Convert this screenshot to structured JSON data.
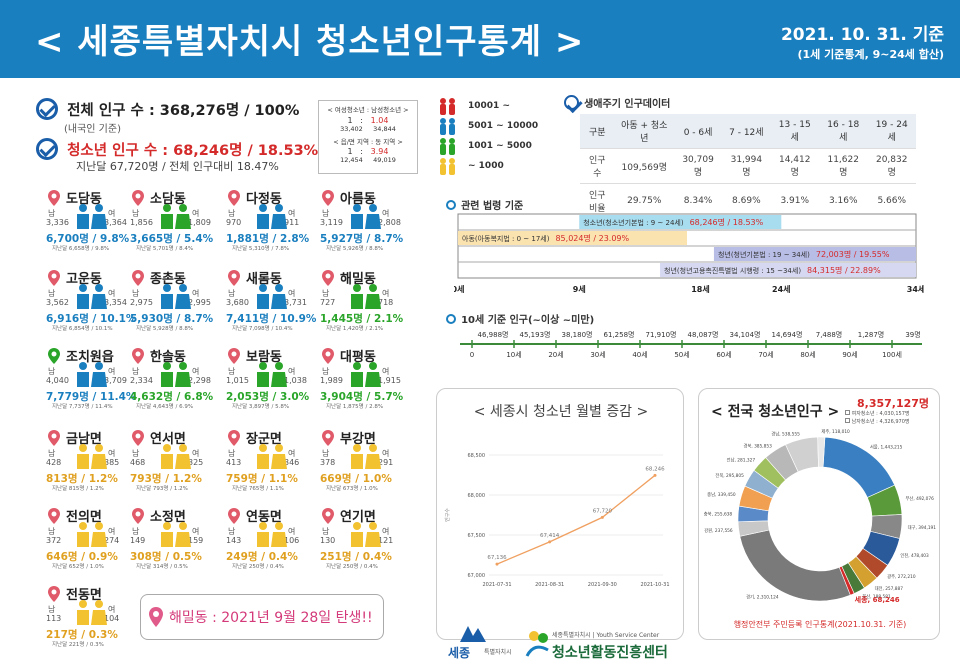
{
  "header": {
    "title": "< 세종특별자치시 청소년인구통계 >",
    "date": "2021. 10. 31. 기준",
    "sub": "(1세 기준통계, 9~24세 합산)"
  },
  "summary": {
    "total": "전체 인구 수 : 368,276명 / 100%",
    "total_note": "(내국인 기준)",
    "youth": "청소년 인구 수 : 68,246명 / 18.53%",
    "youth_note": "지난달 67,720명 / 전체 인구대비 18.47%"
  },
  "ratio_box": {
    "line1": "< 여성청소년 : 남성청소년 >",
    "r1a": "1",
    "r1sep": ":",
    "r1b": "1.04",
    "n1a": "33,402",
    "n1b": "34,844",
    "line2": "< 읍/면 지역 : 동 지역 >",
    "r2a": "1",
    "r2sep": ":",
    "r2b": "3.94",
    "n2a": "12,454",
    "n2b": "49,019"
  },
  "legend": [
    {
      "label": "10001 ~",
      "color": "#d42a2a"
    },
    {
      "label": "5001 ~ 10000",
      "color": "#1a7fbf"
    },
    {
      "label": "1001 ~ 5000",
      "color": "#2aa52a"
    },
    {
      "label": "~ 1000",
      "color": "#f2c230"
    }
  ],
  "common": {
    "m": "남",
    "f": "여"
  },
  "dongs": [
    {
      "name": "도담동",
      "m": "3,336",
      "f": "3,364",
      "stat": "6,700명 / 9.8%",
      "prev": "지난달 6,658명 / 9.8%",
      "color": "#1a7fbf",
      "statColor": "#1a7fbf"
    },
    {
      "name": "소담동",
      "m": "1,856",
      "f": "1,809",
      "stat": "3,665명 / 5.4%",
      "prev": "지난달 5,701명 / 8.4%",
      "color": "#2aa52a",
      "statColor": "#1a7fbf"
    },
    {
      "name": "다정동",
      "m": "970",
      "f": "911",
      "stat": "1,881명 / 2.8%",
      "prev": "지난달 5,310명 / 7.8%",
      "color": "#1a7fbf",
      "statColor": "#1a7fbf"
    },
    {
      "name": "아름동",
      "m": "3,119",
      "f": "2,808",
      "stat": "5,927명 / 8.7%",
      "prev": "지난달 5,926명 / 8.8%",
      "color": "#1a7fbf",
      "statColor": "#1a7fbf"
    },
    {
      "name": "고운동",
      "m": "3,562",
      "f": "3,354",
      "stat": "6,916명 / 10.1%",
      "prev": "지난달 6,854명 / 10.1%",
      "color": "#1a7fbf",
      "statColor": "#1a7fbf"
    },
    {
      "name": "종촌동",
      "m": "2,975",
      "f": "2,995",
      "stat": "5,930명 / 8.7%",
      "prev": "지난달 5,928명 / 8.8%",
      "color": "#1a7fbf",
      "statColor": "#1a7fbf"
    },
    {
      "name": "새롬동",
      "m": "3,680",
      "f": "3,731",
      "stat": "7,411명 / 10.9%",
      "prev": "지난달 7,098명 / 10.4%",
      "color": "#1a7fbf",
      "statColor": "#1a7fbf"
    },
    {
      "name": "해밀동",
      "m": "727",
      "f": "718",
      "stat": "1,445명 / 2.1%",
      "prev": "지난달 1,420명 / 2.1%",
      "color": "#2aa52a",
      "statColor": "#2aa52a"
    },
    {
      "name": "조치원읍",
      "m": "4,040",
      "f": "3,709",
      "stat": "7,779명 / 11.4%",
      "prev": "지난달 7,737명 / 11.4%",
      "color": "#1a7fbf",
      "statColor": "#1a7fbf"
    },
    {
      "name": "한솔동",
      "m": "2,334",
      "f": "2,298",
      "stat": "4,632명 / 6.8%",
      "prev": "지난달 4,643명 / 6.9%",
      "color": "#2aa52a",
      "statColor": "#2aa52a"
    },
    {
      "name": "보람동",
      "m": "1,015",
      "f": "1,038",
      "stat": "2,053명 / 3.0%",
      "prev": "지난달 3,897명 / 5.8%",
      "color": "#2aa52a",
      "statColor": "#2aa52a"
    },
    {
      "name": "대평동",
      "m": "1,989",
      "f": "1,915",
      "stat": "3,904명 / 5.7%",
      "prev": "지난달 1,875명 / 2.8%",
      "color": "#2aa52a",
      "statColor": "#2aa52a"
    },
    {
      "name": "금남면",
      "m": "428",
      "f": "385",
      "stat": "813명 / 1.2%",
      "prev": "지난달 815명 / 1.2%",
      "color": "#f2c230",
      "statColor": "#e0a020"
    },
    {
      "name": "연서면",
      "m": "468",
      "f": "325",
      "stat": "793명 / 1.2%",
      "prev": "지난달 793명 / 1.2%",
      "color": "#f2c230",
      "statColor": "#e0a020"
    },
    {
      "name": "장군면",
      "m": "413",
      "f": "346",
      "stat": "759명 / 1.1%",
      "prev": "지난달 765명 / 1.1%",
      "color": "#f2c230",
      "statColor": "#e0a020"
    },
    {
      "name": "부강면",
      "m": "378",
      "f": "291",
      "stat": "669명 / 1.0%",
      "prev": "지난달 673명 / 1.0%",
      "color": "#f2c230",
      "statColor": "#e0a020"
    },
    {
      "name": "전의면",
      "m": "372",
      "f": "274",
      "stat": "646명 / 0.9%",
      "prev": "지난달 652명 / 1.0%",
      "color": "#f2c230",
      "statColor": "#e0a020"
    },
    {
      "name": "소정면",
      "m": "149",
      "f": "159",
      "stat": "308명 / 0.5%",
      "prev": "지난달 314명 / 0.5%",
      "color": "#f2c230",
      "statColor": "#e0a020"
    },
    {
      "name": "연동면",
      "m": "143",
      "f": "106",
      "stat": "249명 / 0.4%",
      "prev": "지난달 250명 / 0.4%",
      "color": "#f2c230",
      "statColor": "#e0a020"
    },
    {
      "name": "연기면",
      "m": "130",
      "f": "121",
      "stat": "251명 / 0.4%",
      "prev": "지난달 250명 / 0.4%",
      "color": "#f2c230",
      "statColor": "#e0a020"
    },
    {
      "name": "전동면",
      "m": "113",
      "f": "104",
      "stat": "217명 / 0.3%",
      "prev": "지난달 221명 / 0.3%",
      "color": "#f2c230",
      "statColor": "#e0a020"
    }
  ],
  "haemil_note": "해밀동 : 2021년 9월 28일 탄생!!",
  "lifecycle": {
    "title": "생애주기 인구데이터",
    "headers": [
      "구분",
      "아동 + 청소년",
      "0 - 6세",
      "7 - 12세",
      "13 - 15세",
      "16 - 18세",
      "19 - 24세"
    ],
    "rows": [
      [
        "인구수",
        "109,569명",
        "30,709명",
        "31,994명",
        "14,412명",
        "11,622명",
        "20,832명"
      ],
      [
        "인구비율",
        "29.75%",
        "8.34%",
        "8.69%",
        "3.91%",
        "3.16%",
        "5.66%"
      ]
    ]
  },
  "laws": {
    "title": "관련 법령 기준",
    "bars": [
      {
        "label": "청소년(청소년기본법 : 9 ~ 24세)",
        "value": "68,246명 / 18.53%",
        "start": 9,
        "end": 24,
        "color": "#a8dcef"
      },
      {
        "label": "아동(아동복지법 : 0 ~ 17세)",
        "value": "85,024명 / 23.09%",
        "start": 0,
        "end": 17,
        "color": "#fbe3b0"
      },
      {
        "label": "청년(청년기본법 : 19 ~ 34세)",
        "value": "72,003명 / 19.55%",
        "start": 19,
        "end": 34,
        "color": "#b8bde6"
      },
      {
        "label": "청년(청년고용촉진특별법 시행령 : 15 ~34세)",
        "value": "84,315명 / 22.89%",
        "start": 15,
        "end": 34,
        "color": "#d6d8f2"
      }
    ],
    "ticks": [
      "0세",
      "9세",
      "18세",
      "24세",
      "34세"
    ],
    "tickVals": [
      0,
      9,
      18,
      24,
      34
    ]
  },
  "ages": {
    "title": "10세 기준 인구(~이상 ~미만)",
    "values": [
      "46,988명",
      "45,193명",
      "38,180명",
      "61,258명",
      "71,910명",
      "48,087명",
      "34,104명",
      "14,694명",
      "7,488명",
      "1,287명",
      "39명"
    ],
    "labels": [
      "0",
      "10세",
      "20세",
      "30세",
      "40세",
      "50세",
      "60세",
      "70세",
      "80세",
      "90세",
      "100세"
    ]
  },
  "monthly": {
    "title": "< 세종시 청소년 월별 증감 >",
    "ylabel": "인구수"
  },
  "national": {
    "title": "< 전국 청소년인구 >",
    "total": "8,357,127명",
    "female": "여자청소년 : 4,030,157명",
    "male": "남자청소년 : 4,326,970명",
    "sejong_label": "세종, 68,246",
    "footnote": "행정안전부 주민등록 인구통계(2021.10.31. 기준)"
  },
  "chart_data": [
    {
      "type": "line",
      "title": "< 세종시 청소년 월별 증감 >",
      "x": [
        "2021-07-31",
        "2021-08-31",
        "2021-09-30",
        "2021-10-31"
      ],
      "series": [
        {
          "values": [
            67136,
            67414,
            67720,
            68246
          ]
        }
      ],
      "ylabel": "인구수",
      "ylim": [
        67000,
        68500
      ],
      "yticks": [
        "67,000",
        "67,500",
        "68,000",
        "68,500"
      ]
    },
    {
      "type": "pie",
      "title": "< 전국 청소년인구 >",
      "categories": [
        "서울",
        "부산",
        "대구",
        "인천",
        "광주",
        "대전",
        "울산",
        "세종",
        "경기",
        "강원",
        "충북",
        "충남",
        "전북",
        "전남",
        "경북",
        "경남",
        "제주"
      ],
      "values": [
        1443215,
        492076,
        394191,
        478403,
        272210,
        257887,
        188581,
        68246,
        2310124,
        237556,
        255638,
        339450,
        295805,
        281327,
        385853,
        538555,
        118010
      ],
      "colors": [
        "#3a7fc1",
        "#5a9a3a",
        "#888888",
        "#2a5a9a",
        "#b04a2a",
        "#d4a030",
        "#4a7a3a",
        "#d42a2a",
        "#7a7a7a",
        "#c8c8c8",
        "#5a8ac8",
        "#f0a050",
        "#90b0d0",
        "#a0c060",
        "#b8b8b8",
        "#d0d0d0",
        "#e8e8e8"
      ]
    }
  ],
  "footer": {
    "logo": "세종",
    "logo_sub": "특별자치시",
    "center_small": "세종특별자치시 | Youth Service Center",
    "center": "청소년활동진흥센터"
  }
}
